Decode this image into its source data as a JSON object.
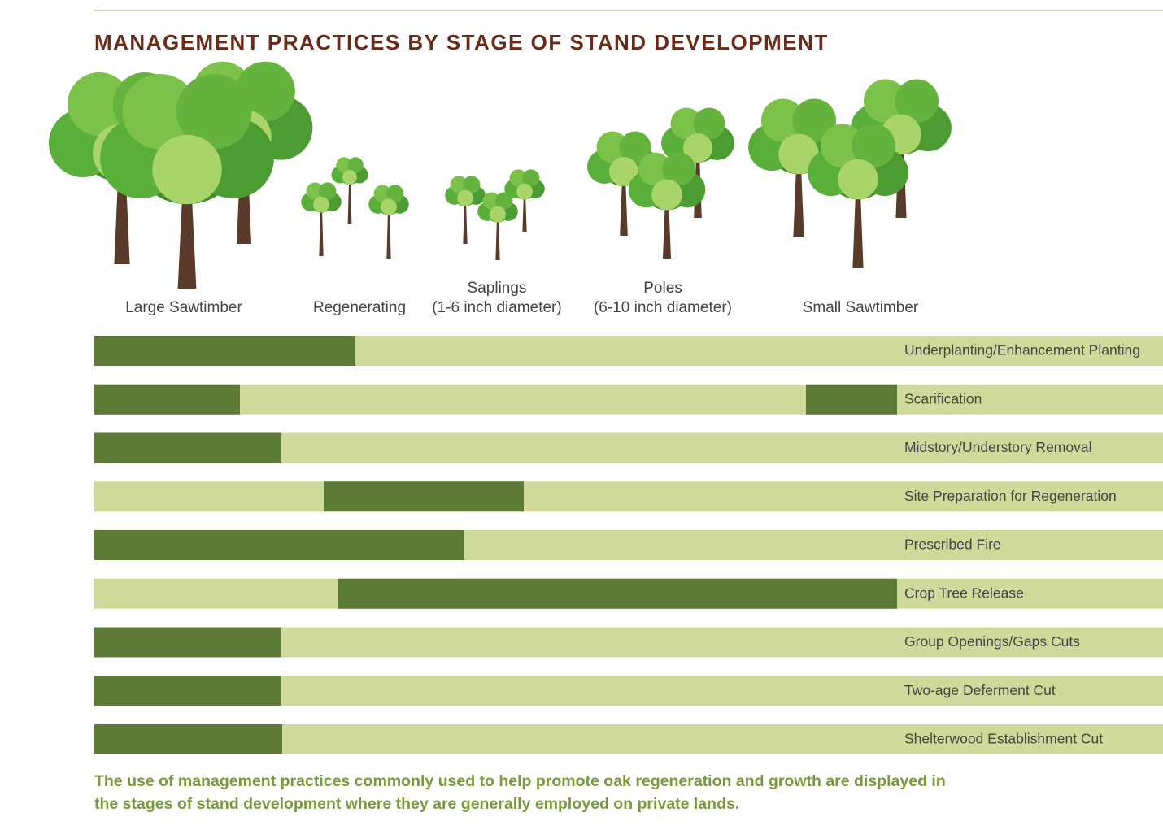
{
  "title": "MANAGEMENT PRACTICES BY STAGE OF STAND DEVELOPMENT",
  "stages": [
    {
      "lines": [
        "Large Sawtimber"
      ]
    },
    {
      "lines": [
        "Regenerating"
      ]
    },
    {
      "lines": [
        "Saplings",
        "(1-6 inch diameter)"
      ]
    },
    {
      "lines": [
        "Poles",
        "(6-10 inch diameter)"
      ]
    },
    {
      "lines": [
        "Small Sawtimber"
      ]
    }
  ],
  "practices": [
    "Underplanting/Enhancement Planting",
    "Scarification",
    "Midstory/Understory Removal",
    "Site Preparation for Regeneration",
    "Prescribed Fire",
    "Crop Tree Release",
    "Group Openings/Gaps Cuts",
    "Two-age Deferment Cut",
    "Shelterwood Establishment Cut"
  ],
  "caption": [
    "The use of management practices commonly used to help promote oak regeneration and growth are displayed in",
    "the stages of stand development where they are generally employed on private lands."
  ]
}
